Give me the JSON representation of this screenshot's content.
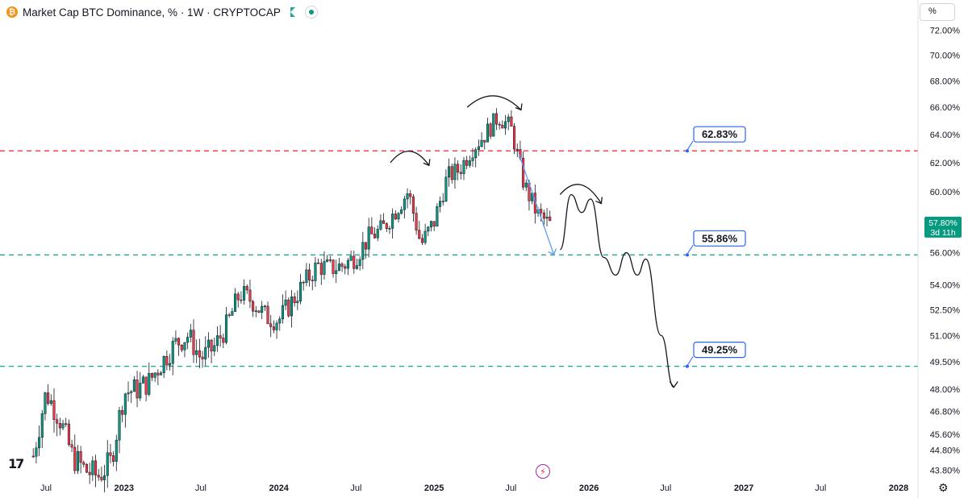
{
  "header": {
    "title": "Market Cap BTC Dominance, % · 1W · CRYPTOCAP",
    "symbol_icon": "bitcoin-icon",
    "flag_icon": "green-flag-icon",
    "status_icon": "market-open-dot-icon"
  },
  "toolbar": {
    "unit_label": "%"
  },
  "colors": {
    "up": "#089981",
    "down": "#f23645",
    "resistance": "#f23645",
    "support": "#22ab94",
    "projection": "#5b9cf6",
    "label_border": "#2962ff",
    "drawing": "#131722"
  },
  "chart_data": {
    "type": "candlestick",
    "timeframe": "1W",
    "y_axis": {
      "scale": "log",
      "ylim": [
        43.3,
        72.5
      ],
      "ticks": [
        "72.00%",
        "70.00%",
        "68.00%",
        "66.00%",
        "64.00%",
        "62.00%",
        "60.00%",
        "56.00%",
        "54.00%",
        "52.50%",
        "51.00%",
        "49.50%",
        "48.00%",
        "46.80%",
        "45.60%",
        "44.80%",
        "43.80%"
      ]
    },
    "x_axis": {
      "ticks": [
        "Jul",
        "2023",
        "Jul",
        "2024",
        "Jul",
        "2025",
        "Jul",
        "2026",
        "Jul",
        "2027",
        "Jul",
        "2028"
      ],
      "tick_dates": [
        "2022-07",
        "2023-01",
        "2023-07",
        "2024-01",
        "2024-07",
        "2025-01",
        "2025-07",
        "2026-01",
        "2026-07",
        "2027-01",
        "2027-07",
        "2028-01"
      ]
    },
    "last_price": {
      "value": "57.80%",
      "countdown": "3d 11h"
    },
    "levels": [
      {
        "label": "62.83%",
        "value": 62.83,
        "style": "resistance"
      },
      {
        "label": "55.86%",
        "value": 55.86,
        "style": "support"
      },
      {
        "label": "49.25%",
        "value": 49.25,
        "style": "support"
      }
    ],
    "path_samples": [
      [
        "2022-06",
        44.5
      ],
      [
        "2022-07",
        47.8
      ],
      [
        "2022-08",
        46.5
      ],
      [
        "2022-09",
        44.5
      ],
      [
        "2022-10",
        43.8
      ],
      [
        "2022-11",
        43.5
      ],
      [
        "2022-12",
        44.2
      ],
      [
        "2023-01",
        47.8
      ],
      [
        "2023-02",
        48.0
      ],
      [
        "2023-03",
        48.4
      ],
      [
        "2023-04",
        49.5
      ],
      [
        "2023-05",
        50.5
      ],
      [
        "2023-06",
        51.0
      ],
      [
        "2023-07",
        49.7
      ],
      [
        "2023-08",
        50.3
      ],
      [
        "2023-09",
        51.6
      ],
      [
        "2023-10",
        53.5
      ],
      [
        "2023-11",
        53.0
      ],
      [
        "2023-12",
        52.1
      ],
      [
        "2024-01",
        51.9
      ],
      [
        "2024-02",
        53.0
      ],
      [
        "2024-03",
        54.1
      ],
      [
        "2024-04",
        55.2
      ],
      [
        "2024-05",
        55.0
      ],
      [
        "2024-06",
        55.2
      ],
      [
        "2024-07",
        55.8
      ],
      [
        "2024-08",
        57.0
      ],
      [
        "2024-09",
        57.5
      ],
      [
        "2024-10",
        58.7
      ],
      [
        "2024-11",
        60.0
      ],
      [
        "2024-12",
        56.5
      ],
      [
        "2025-01",
        58.0
      ],
      [
        "2025-02",
        61.0
      ],
      [
        "2025-03",
        61.5
      ],
      [
        "2025-04",
        63.0
      ],
      [
        "2025-05",
        64.0
      ],
      [
        "2025-06",
        65.3
      ],
      [
        "2025-07",
        64.5
      ],
      [
        "2025-08",
        60.5
      ],
      [
        "2025-09",
        58.5
      ],
      [
        "2025-10",
        57.8
      ]
    ],
    "projection": {
      "lines": [
        [
          [
            "2025-07-20",
            62.6
          ],
          [
            "2025-10-10",
            55.9
          ]
        ]
      ],
      "scenario_path": [
        [
          "2025-10-25",
          56.2
        ],
        [
          "2025-11-20",
          59.8
        ],
        [
          "2025-12-15",
          58.6
        ],
        [
          "2026-01-05",
          59.5
        ],
        [
          "2026-02-05",
          55.7
        ],
        [
          "2026-03-05",
          54.6
        ],
        [
          "2026-03-30",
          56.0
        ],
        [
          "2026-04-25",
          54.6
        ],
        [
          "2026-05-15",
          55.6
        ],
        [
          "2026-06-20",
          51.0
        ],
        [
          "2026-07-20",
          48.1
        ]
      ]
    },
    "annotations": [
      {
        "type": "arc-arrow",
        "from": [
          "2024-09-20",
          62.0
        ],
        "to": [
          "2024-12-20",
          61.8
        ]
      },
      {
        "type": "arc-arrow",
        "from": [
          "2025-03-20",
          66.0
        ],
        "to": [
          "2025-07-25",
          65.8
        ]
      },
      {
        "type": "arc-arrow",
        "from": [
          "2025-10-25",
          59.8
        ],
        "to": [
          "2026-01-30",
          59.2
        ]
      }
    ]
  }
}
